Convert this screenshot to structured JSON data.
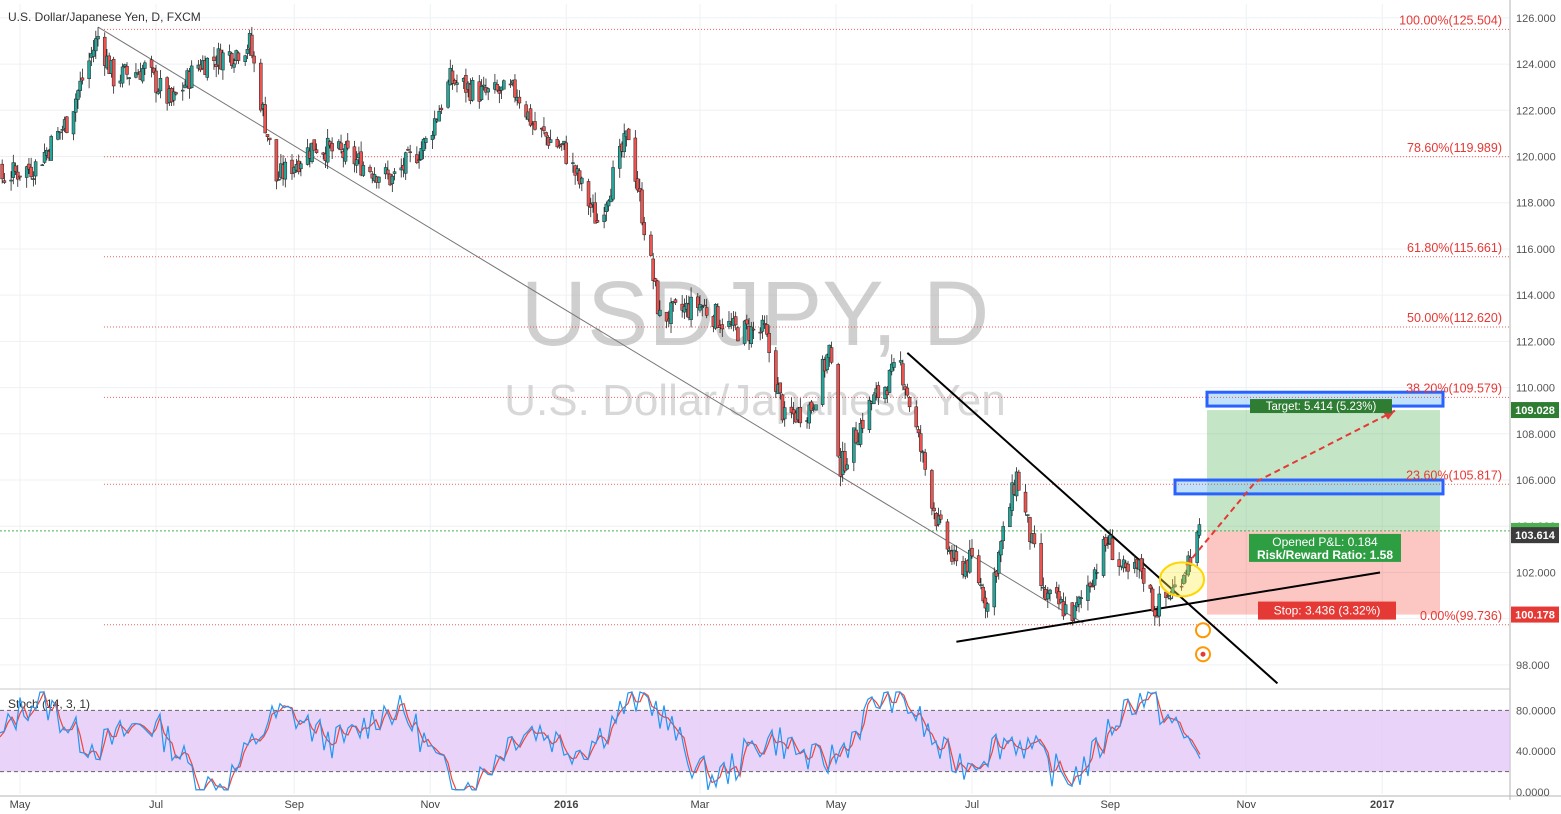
{
  "header": {
    "symbol_title": "U.S. Dollar/Japanese Yen, D, FXCM"
  },
  "watermark": {
    "main": "USDJPY, D",
    "sub": "U.S. Dollar/Japanese Yen"
  },
  "colors": {
    "up_candle": "#26a69a",
    "down_candle": "#ef5350",
    "fib_line": "#e53935",
    "target_green": "#4caf50",
    "stop_red": "#f44336",
    "stoch_k": "#2196f3",
    "stoch_d": "#f44336",
    "stoch_band": "#e1c4f7"
  },
  "chart_data": {
    "type": "candlestick",
    "title": "U.S. Dollar/Japanese Yen, D, FXCM",
    "x_tick_labels": [
      "May",
      "Jul",
      "Sep",
      "Nov",
      "2016",
      "Mar",
      "May",
      "Jul",
      "Sep",
      "Nov",
      "2017"
    ],
    "y_tick_labels": [
      "126.000",
      "124.000",
      "122.000",
      "120.000",
      "118.000",
      "116.000",
      "114.000",
      "112.000",
      "110.000",
      "108.000",
      "106.000",
      "104.000",
      "102.000",
      "100.000",
      "98.000"
    ],
    "ylim": [
      97.0,
      126.6
    ],
    "price_path": [
      [
        "2015-04-01",
        119.8
      ],
      [
        "2015-04-20",
        119.0
      ],
      [
        "2015-05-08",
        119.6
      ],
      [
        "2015-05-22",
        121.5
      ],
      [
        "2015-06-05",
        125.2
      ],
      [
        "2015-06-12",
        123.4
      ],
      [
        "2015-06-26",
        123.8
      ],
      [
        "2015-07-08",
        122.3
      ],
      [
        "2015-07-20",
        124.0
      ],
      [
        "2015-08-05",
        124.5
      ],
      [
        "2015-08-12",
        124.9
      ],
      [
        "2015-08-24",
        119.0
      ],
      [
        "2015-09-10",
        120.5
      ],
      [
        "2015-09-25",
        120.0
      ],
      [
        "2015-10-15",
        119.0
      ],
      [
        "2015-10-30",
        120.6
      ],
      [
        "2015-11-10",
        123.3
      ],
      [
        "2015-11-25",
        122.7
      ],
      [
        "2015-12-10",
        122.8
      ],
      [
        "2015-12-18",
        121.2
      ],
      [
        "2015-12-31",
        120.3
      ],
      [
        "2016-01-15",
        117.2
      ],
      [
        "2016-01-29",
        121.0
      ],
      [
        "2016-02-05",
        117.0
      ],
      [
        "2016-02-12",
        113.0
      ],
      [
        "2016-03-01",
        113.6
      ],
      [
        "2016-03-16",
        112.5
      ],
      [
        "2016-03-30",
        112.4
      ],
      [
        "2016-04-08",
        108.6
      ],
      [
        "2016-04-20",
        109.2
      ],
      [
        "2016-04-28",
        111.6
      ],
      [
        "2016-05-03",
        106.5
      ],
      [
        "2016-05-16",
        109.2
      ],
      [
        "2016-05-30",
        111.0
      ],
      [
        "2016-06-16",
        104.0
      ],
      [
        "2016-06-24",
        102.2
      ],
      [
        "2016-07-01",
        102.5
      ],
      [
        "2016-07-08",
        100.6
      ],
      [
        "2016-07-21",
        106.2
      ],
      [
        "2016-08-02",
        101.0
      ],
      [
        "2016-08-16",
        100.2
      ],
      [
        "2016-08-31",
        103.4
      ],
      [
        "2016-09-08",
        101.8
      ],
      [
        "2016-09-15",
        102.2
      ],
      [
        "2016-09-21",
        100.4
      ],
      [
        "2016-09-30",
        101.3
      ],
      [
        "2016-10-11",
        103.6
      ]
    ],
    "last_price": 103.614,
    "fibonacci": [
      {
        "label": "100.00%(125.504)",
        "value": 125.504
      },
      {
        "label": "78.60%(119.989)",
        "value": 119.989
      },
      {
        "label": "61.80%(115.661)",
        "value": 115.661
      },
      {
        "label": "50.00%(112.620)",
        "value": 112.62
      },
      {
        "label": "38.20%(109.579)",
        "value": 109.579
      },
      {
        "label": "23.60%(105.817)",
        "value": 105.817
      },
      {
        "label": "0.00%(99.736)",
        "value": 99.736
      }
    ],
    "position": {
      "entry": 103.798,
      "target": 109.028,
      "stop": 100.178,
      "target_label": "Target: 5.414 (5.23%)",
      "stop_label": "Stop: 3.436 (3.32%)",
      "pnl_label": "Opened P&L: 0.184",
      "rr_label": "Risk/Reward Ratio: 1.58"
    },
    "price_tags": {
      "target": "109.028",
      "entry": "103.798",
      "last": "103.614",
      "stop": "100.178"
    },
    "zones": [
      {
        "name": "upper-resistance-box",
        "from": 109.2,
        "to": 109.8
      },
      {
        "name": "mid-resistance-box",
        "from": 105.4,
        "to": 106.0
      }
    ],
    "trendlines": [
      {
        "name": "long-downtrend",
        "from": [
          "2015-06-05",
          125.6
        ],
        "to": [
          "2016-08-20",
          99.8
        ]
      },
      {
        "name": "triangle-upper",
        "from": [
          "2016-06-02",
          111.5
        ],
        "to": [
          "2016-11-15",
          97.2
        ]
      },
      {
        "name": "triangle-lower",
        "from": [
          "2016-06-24",
          99.0
        ],
        "to": [
          "2016-12-31",
          102.0
        ]
      }
    ],
    "stochastic": {
      "label": "Stoch (14, 3, 1)",
      "tick_labels": [
        "80.0000",
        "40.0000",
        "0.0000"
      ],
      "ylim": [
        -2,
        100
      ],
      "upper_band": 80,
      "lower_band": 20
    }
  }
}
